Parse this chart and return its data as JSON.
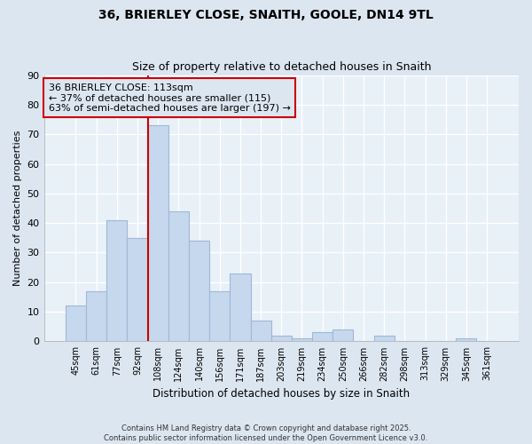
{
  "title1": "36, BRIERLEY CLOSE, SNAITH, GOOLE, DN14 9TL",
  "title2": "Size of property relative to detached houses in Snaith",
  "xlabel": "Distribution of detached houses by size in Snaith",
  "ylabel": "Number of detached properties",
  "bar_labels": [
    "45sqm",
    "61sqm",
    "77sqm",
    "92sqm",
    "108sqm",
    "124sqm",
    "140sqm",
    "156sqm",
    "171sqm",
    "187sqm",
    "203sqm",
    "219sqm",
    "234sqm",
    "250sqm",
    "266sqm",
    "282sqm",
    "298sqm",
    "313sqm",
    "329sqm",
    "345sqm",
    "361sqm"
  ],
  "bar_values": [
    12,
    17,
    41,
    35,
    73,
    44,
    34,
    17,
    23,
    7,
    2,
    1,
    3,
    4,
    0,
    2,
    0,
    0,
    0,
    1,
    0
  ],
  "bar_color": "#c5d8ed",
  "bar_edge_color": "#a0b8d8",
  "grid_color": "#dce6f1",
  "bg_color": "#dce6f1",
  "plot_bg_color": "#e8f0f8",
  "vline_x_index": 4,
  "vline_color": "#cc0000",
  "annotation_line1": "36 BRIERLEY CLOSE: 113sqm",
  "annotation_line2": "← 37% of detached houses are smaller (115)",
  "annotation_line3": "63% of semi-detached houses are larger (197) →",
  "annotation_box_edge": "#cc0000",
  "ylim": [
    0,
    90
  ],
  "yticks": [
    0,
    10,
    20,
    30,
    40,
    50,
    60,
    70,
    80,
    90
  ],
  "footnote1": "Contains HM Land Registry data © Crown copyright and database right 2025.",
  "footnote2": "Contains public sector information licensed under the Open Government Licence v3.0."
}
